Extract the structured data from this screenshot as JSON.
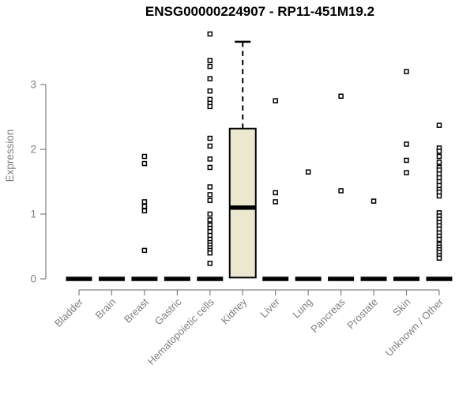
{
  "chart_data": {
    "type": "boxplot",
    "title": "ENSG00000224907 - RP11-451M19.2",
    "ylabel": "Expression",
    "xlabel": "",
    "ylim": [
      0,
      3.95
    ],
    "yticks": [
      "0",
      "1",
      "2",
      "3"
    ],
    "grid": false,
    "legend_position": "none",
    "categories": [
      "Bladder",
      "Brain",
      "Breast",
      "Gastric",
      "Hematopoietic cells",
      "Kidney",
      "Liver",
      "Lung",
      "Pancreas",
      "Prostate",
      "Skin",
      "Unknown / Other"
    ],
    "boxes": [
      {
        "category": "Bladder",
        "q1": 0,
        "median": 0,
        "q3": 0,
        "whisker_low": 0,
        "whisker_high": 0,
        "outliers": []
      },
      {
        "category": "Brain",
        "q1": 0,
        "median": 0,
        "q3": 0,
        "whisker_low": 0,
        "whisker_high": 0,
        "outliers": []
      },
      {
        "category": "Breast",
        "q1": 0,
        "median": 0,
        "q3": 0,
        "whisker_low": 0,
        "whisker_high": 0,
        "outliers": [
          1.89,
          1.78,
          1.19,
          1.12,
          1.05,
          0.44
        ]
      },
      {
        "category": "Gastric",
        "q1": 0,
        "median": 0,
        "q3": 0,
        "whisker_low": 0,
        "whisker_high": 0,
        "outliers": []
      },
      {
        "category": "Hematopoietic cells",
        "q1": 0,
        "median": 0,
        "q3": 0,
        "whisker_low": 0,
        "whisker_high": 0,
        "outliers": [
          3.78,
          3.37,
          3.28,
          3.09,
          2.9,
          2.77,
          2.71,
          2.66,
          2.17,
          2.05,
          1.85,
          1.72,
          1.42,
          1.3,
          1.21,
          1.0,
          0.91,
          0.83,
          0.78,
          0.73,
          0.67,
          0.61,
          0.56,
          0.52,
          0.48,
          0.44,
          0.4,
          0.24
        ]
      },
      {
        "category": "Kidney",
        "q1": 0.02,
        "median": 1.1,
        "q3": 2.32,
        "whisker_low": 0.02,
        "whisker_high": 3.66,
        "outliers": []
      },
      {
        "category": "Liver",
        "q1": 0,
        "median": 0,
        "q3": 0,
        "whisker_low": 0,
        "whisker_high": 0,
        "outliers": [
          2.75,
          1.33,
          1.19
        ]
      },
      {
        "category": "Lung",
        "q1": 0,
        "median": 0,
        "q3": 0,
        "whisker_low": 0,
        "whisker_high": 0,
        "outliers": [
          1.65
        ]
      },
      {
        "category": "Pancreas",
        "q1": 0,
        "median": 0,
        "q3": 0,
        "whisker_low": 0,
        "whisker_high": 0,
        "outliers": [
          2.82,
          1.36
        ]
      },
      {
        "category": "Prostate",
        "q1": 0,
        "median": 0,
        "q3": 0,
        "whisker_low": 0,
        "whisker_high": 0,
        "outliers": [
          1.2
        ]
      },
      {
        "category": "Skin",
        "q1": 0,
        "median": 0,
        "q3": 0,
        "whisker_low": 0,
        "whisker_high": 0,
        "outliers": [
          3.2,
          2.08,
          1.83,
          1.64
        ]
      },
      {
        "category": "Unknown / Other",
        "q1": 0,
        "median": 0,
        "q3": 0,
        "whisker_low": 0,
        "whisker_high": 0,
        "outliers": [
          2.37,
          2.02,
          1.97,
          1.89,
          1.8,
          1.72,
          1.68,
          1.62,
          1.56,
          1.5,
          1.44,
          1.38,
          1.34,
          1.28,
          1.02,
          0.97,
          0.92,
          0.87,
          0.82,
          0.77,
          0.71,
          0.66,
          0.61,
          0.53,
          0.49,
          0.45,
          0.41,
          0.36,
          0.32
        ]
      }
    ],
    "colors": {
      "box_fill": "#ece8d0",
      "box_border": "#000000",
      "median": "#000000",
      "whisker": "#000000",
      "outlier_stroke": "#000000",
      "outlier_fill": "#ffffff",
      "axis": "#808080",
      "tick_label": "#808080",
      "title": "#000000",
      "background": "#ffffff"
    }
  }
}
